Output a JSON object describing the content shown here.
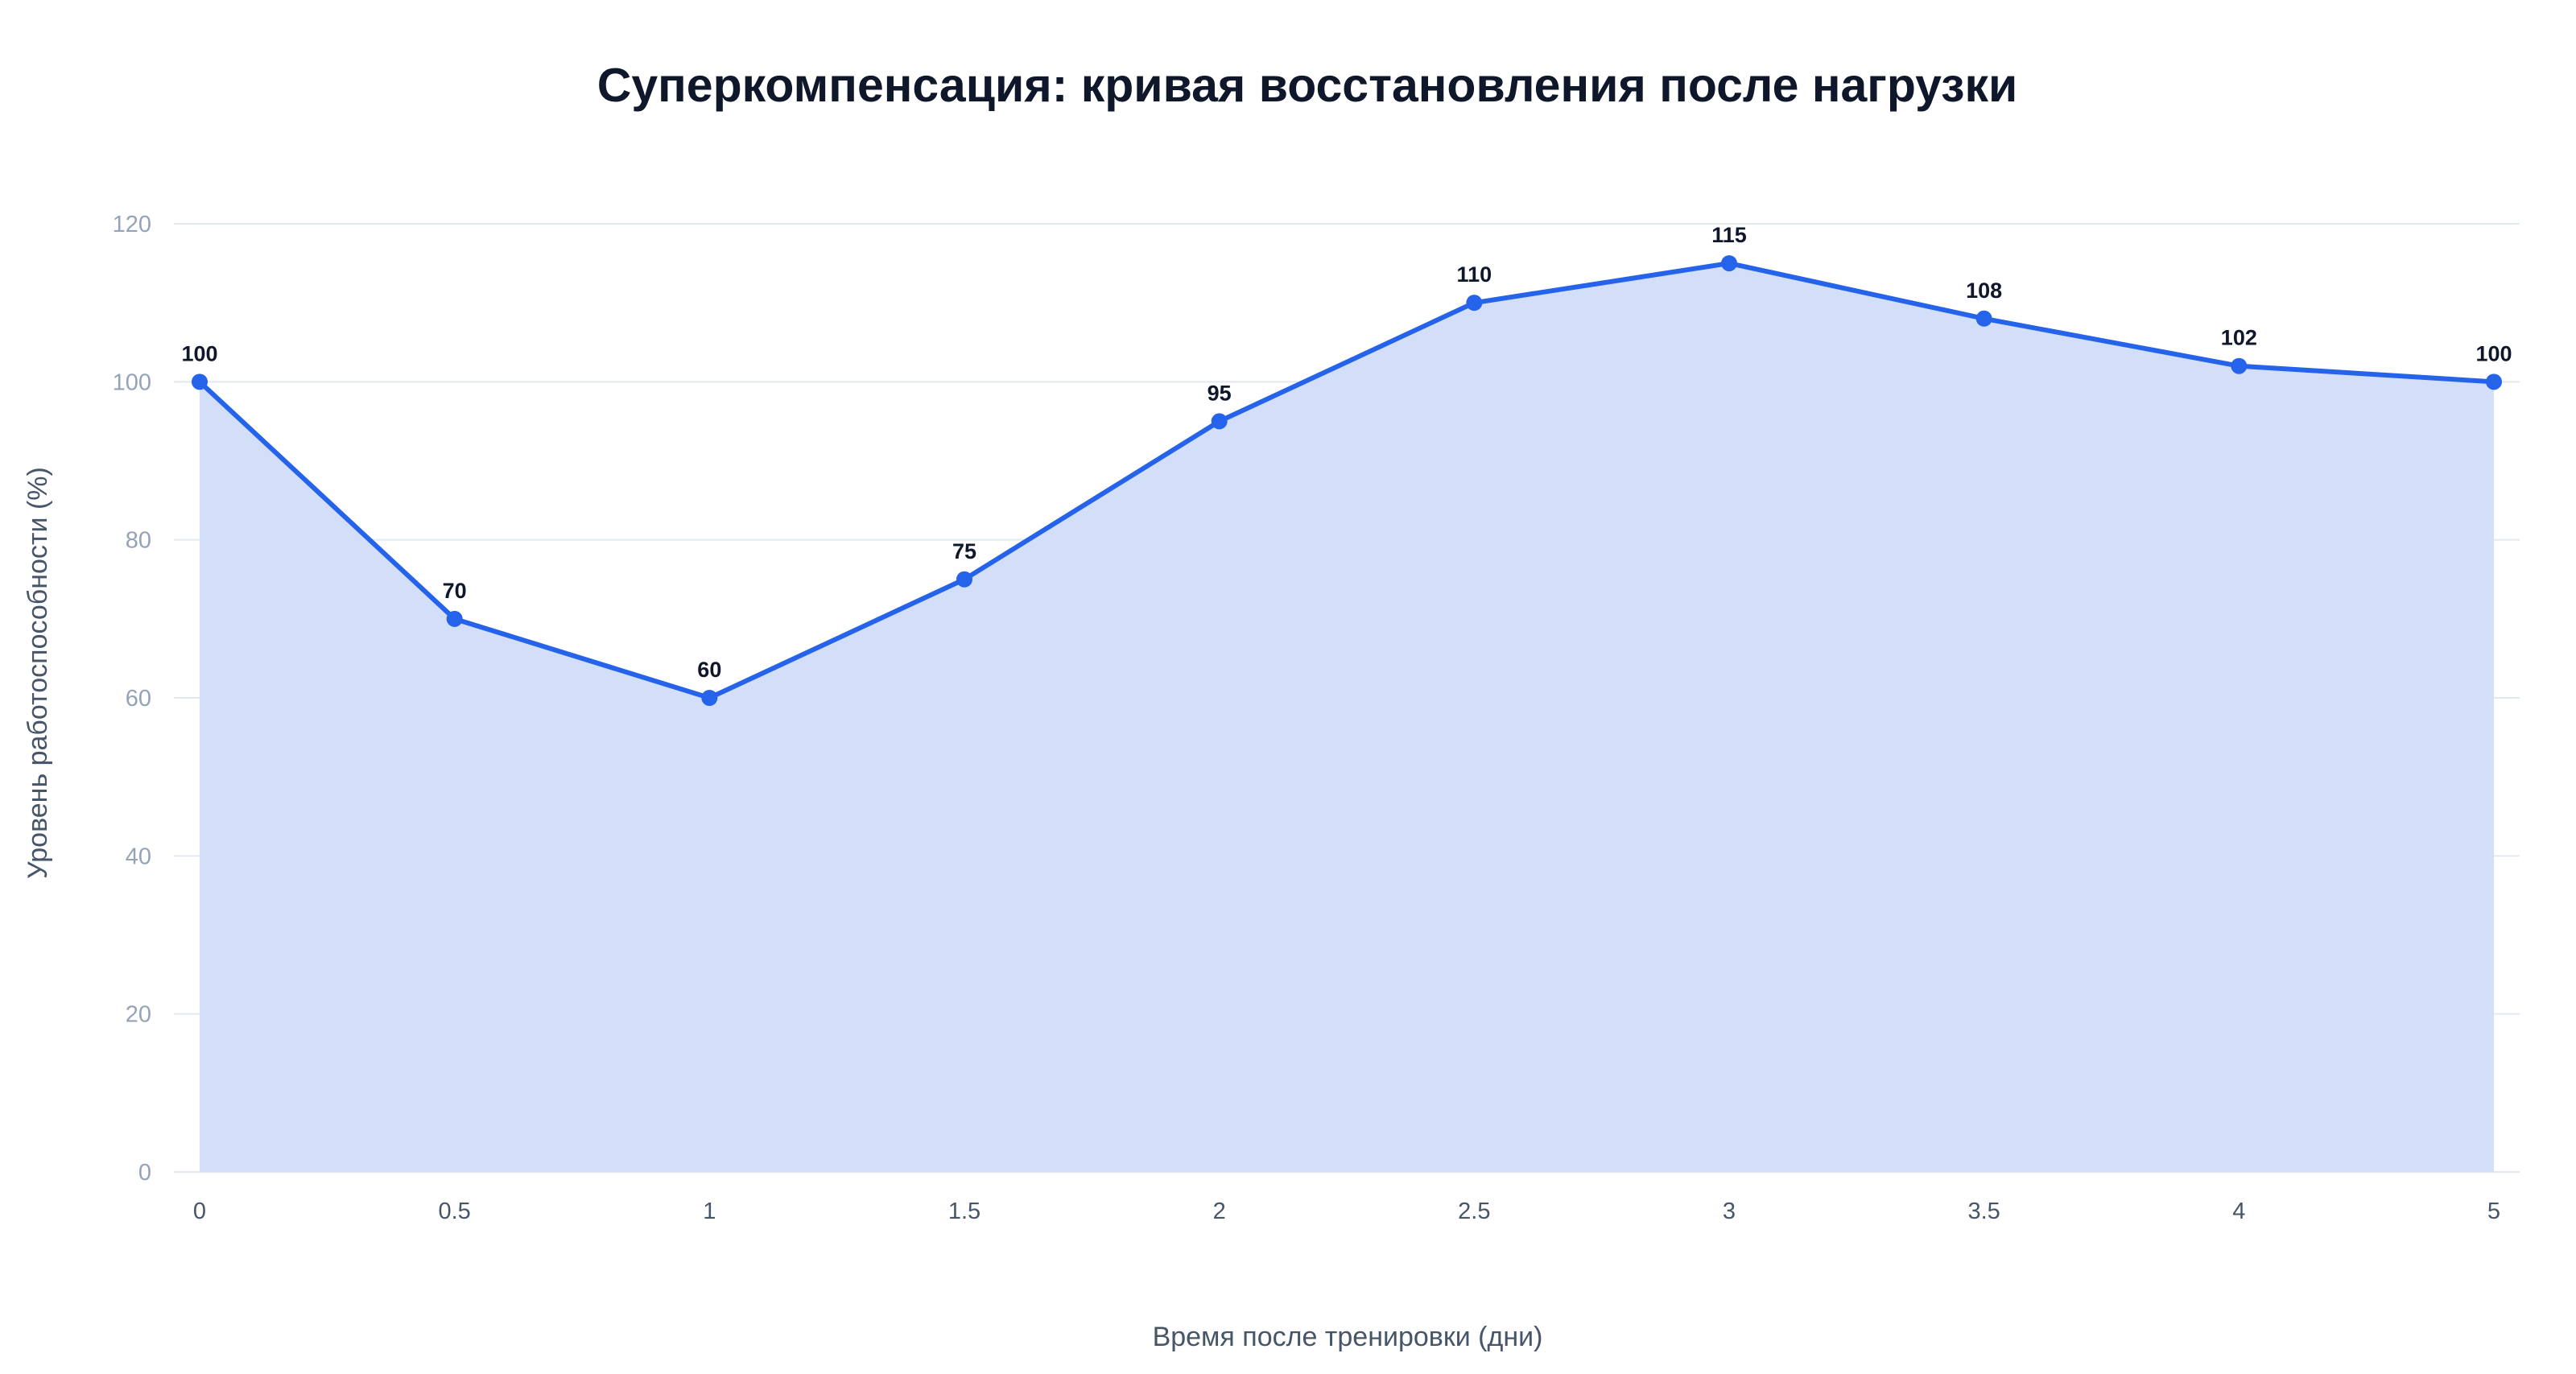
{
  "chart_data": {
    "type": "area",
    "title": "Суперкомпенсация: кривая восстановления после нагрузки",
    "xlabel": "Время после тренировки (дни)",
    "ylabel": "Уровень работоспособности (%)",
    "x": [
      "0",
      "0.5",
      "1",
      "1.5",
      "2",
      "2.5",
      "3",
      "3.5",
      "4",
      "5"
    ],
    "series": [
      {
        "values": [
          100,
          70,
          60,
          75,
          95,
          110,
          115,
          108,
          102,
          100
        ]
      }
    ],
    "ylim": [
      0,
      120
    ],
    "yticks": [
      "0",
      "20",
      "40",
      "60",
      "80",
      "100",
      "120"
    ],
    "grid": true,
    "legend": "none",
    "colors": {
      "line": "#2563eb",
      "fill": "#d3dff8",
      "point": "#2563eb"
    }
  }
}
